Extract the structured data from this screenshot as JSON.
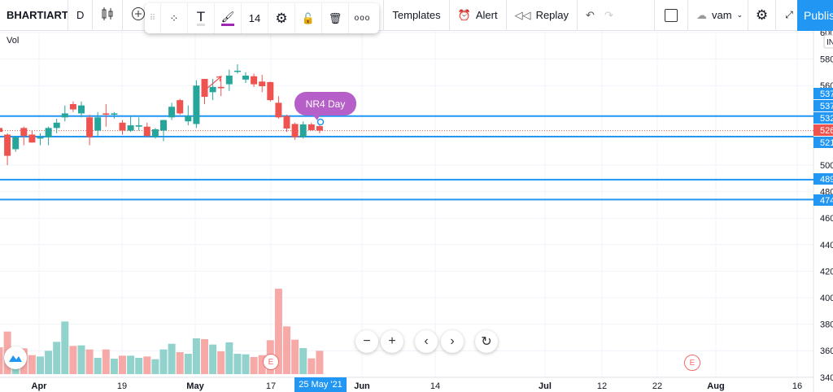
{
  "toolbar": {
    "symbol": "BHARTIARTL",
    "interval": "D",
    "floating": {
      "font_size": "14",
      "more": "ooo",
      "paint_color": "#9c27b0"
    },
    "templates": "Templates",
    "alert": "Alert",
    "replay": "Replay",
    "layout_name": "vam",
    "publish": "Publish"
  },
  "legend": {
    "volume": "Vol"
  },
  "annotation": {
    "text": "NR4 Day"
  },
  "crosshair_date": "25 May '21",
  "colors": {
    "up": "#26a69a",
    "down": "#ef5350",
    "hline": "#2196f3",
    "accent": "#2196f3",
    "annotation": "#b65fc9"
  },
  "price_axis": {
    "ticks": [
      "600",
      "580",
      "560",
      "500",
      "480",
      "460",
      "440",
      "420",
      "400",
      "380",
      "360",
      "340"
    ],
    "currency_label": "INR",
    "line_labels": [
      {
        "text": "537",
        "price": 537
      },
      {
        "text": "537",
        "price": 537
      },
      {
        "text": "532",
        "price": 532
      },
      {
        "text": "526",
        "price": 526,
        "current": true
      },
      {
        "text": "521",
        "price": 521
      },
      {
        "text": "489",
        "price": 489
      },
      {
        "text": "474",
        "price": 474
      }
    ]
  },
  "time_axis": {
    "ticks": [
      "Apr",
      "19",
      "May",
      "17",
      "Jun",
      "14",
      "Jul",
      "12",
      "22",
      "Aug",
      "16"
    ]
  },
  "chart_data": {
    "type": "candlestick",
    "ylim": [
      340,
      600
    ],
    "horizontal_lines": [
      537,
      521.5,
      489,
      474
    ],
    "last_price": 526,
    "candles": [
      [
        528,
        530,
        524,
        525
      ],
      [
        523,
        524,
        500,
        507
      ],
      [
        512,
        522,
        510,
        521
      ],
      [
        528,
        529,
        515,
        522
      ],
      [
        523,
        526,
        517,
        517
      ],
      [
        520,
        524,
        515,
        521
      ],
      [
        521,
        529,
        515,
        528
      ],
      [
        528,
        535,
        524,
        532
      ],
      [
        536,
        545,
        533,
        539
      ],
      [
        546,
        548,
        540,
        542
      ],
      [
        539,
        548,
        536,
        545
      ],
      [
        536,
        538,
        515,
        521
      ],
      [
        526,
        540,
        522,
        536
      ],
      [
        539,
        546,
        529,
        538
      ],
      [
        538,
        540,
        535,
        539
      ],
      [
        532,
        534,
        523,
        526
      ],
      [
        526,
        537,
        525,
        530
      ],
      [
        529,
        536,
        526,
        530
      ],
      [
        529,
        532,
        521,
        522
      ],
      [
        521,
        528,
        520,
        527
      ],
      [
        526,
        534,
        518,
        534
      ],
      [
        536,
        547,
        534,
        544
      ],
      [
        549,
        550,
        538,
        539
      ],
      [
        533,
        545,
        530,
        537
      ],
      [
        531,
        564,
        528,
        560
      ],
      [
        565,
        565,
        546,
        551.5
      ],
      [
        555,
        565,
        549,
        559
      ],
      [
        559,
        565,
        552,
        558
      ],
      [
        561,
        572,
        556,
        567.5
      ],
      [
        571,
        576,
        569,
        571.2
      ],
      [
        564.5,
        570,
        562,
        567.5
      ],
      [
        567,
        569,
        559,
        561
      ],
      [
        563,
        568,
        555,
        559.5
      ],
      [
        562.6,
        563,
        548,
        549
      ],
      [
        547,
        552,
        535,
        536
      ],
      [
        537,
        538,
        525,
        527.6
      ],
      [
        531,
        532,
        519,
        521
      ],
      [
        521,
        533,
        520,
        530.7
      ],
      [
        530.7,
        532,
        526,
        526.4
      ],
      [
        529.4,
        530,
        524,
        526
      ]
    ],
    "volume": [
      99,
      157,
      99,
      95,
      70,
      65,
      86,
      119,
      194,
      104,
      106,
      91,
      60,
      91,
      57,
      68,
      68,
      60,
      65,
      55,
      91,
      112,
      81,
      75,
      132,
      129,
      109,
      84,
      117,
      75,
      73,
      63,
      70,
      125,
      315,
      176,
      127,
      96,
      58,
      86
    ],
    "volume_dir": [
      "d",
      "d",
      "u",
      "d",
      "d",
      "u",
      "u",
      "u",
      "u",
      "d",
      "u",
      "d",
      "u",
      "d",
      "u",
      "d",
      "u",
      "u",
      "d",
      "u",
      "u",
      "u",
      "d",
      "u",
      "u",
      "d",
      "u",
      "d",
      "u",
      "u",
      "u",
      "d",
      "d",
      "d",
      "d",
      "d",
      "d",
      "u",
      "d",
      "d"
    ]
  }
}
